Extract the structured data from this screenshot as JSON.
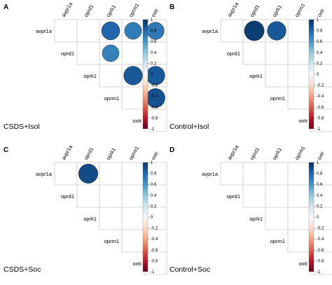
{
  "chart_data": [
    {
      "type": "heatmap",
      "panel": "A",
      "condition": "CSDS+Isol",
      "variables": [
        "avpr1a",
        "oprd1",
        "oprk1",
        "oprm1",
        "oxtr"
      ],
      "colorbar_ticks": [
        "1",
        "0.8",
        "0.6",
        "0.4",
        "0.2",
        "0",
        "-0.2",
        "-0.4",
        "-0.6",
        "-0.8",
        "-1"
      ],
      "cells": [
        {
          "row": "avpr1a",
          "col": "oprk1",
          "value": 0.8
        },
        {
          "row": "avpr1a",
          "col": "oprm1",
          "value": 0.7
        },
        {
          "row": "avpr1a",
          "col": "oxtr",
          "value": 0.72
        },
        {
          "row": "oprd1",
          "col": "oprk1",
          "value": 0.68
        },
        {
          "row": "oprk1",
          "col": "oprm1",
          "value": 0.85
        },
        {
          "row": "oprk1",
          "col": "oxtr",
          "value": 0.85
        },
        {
          "row": "oprm1",
          "col": "oxtr",
          "value": 0.88
        }
      ]
    },
    {
      "type": "heatmap",
      "panel": "B",
      "condition": "Control+Isol",
      "variables": [
        "avpr1a",
        "oprd1",
        "oprk1",
        "oprm1",
        "oxtr"
      ],
      "colorbar_ticks": [
        "1",
        "0.8",
        "0.6",
        "0.4",
        "0.2",
        "0",
        "-0.2",
        "-0.4",
        "-0.6",
        "-0.8",
        "-1"
      ],
      "cells": [
        {
          "row": "avpr1a",
          "col": "oprd1",
          "value": 0.95
        },
        {
          "row": "avpr1a",
          "col": "oprk1",
          "value": 0.85
        }
      ]
    },
    {
      "type": "heatmap",
      "panel": "C",
      "condition": "CSDS+Soc",
      "variables": [
        "avpr1a",
        "oprd1",
        "oprk1",
        "oprm1",
        "oxtr"
      ],
      "colorbar_ticks": [
        "1",
        "0.8",
        "0.6",
        "0.4",
        "0.2",
        "0",
        "-0.2",
        "-0.4",
        "-0.6",
        "-0.8",
        "-1"
      ],
      "cells": [
        {
          "row": "avpr1a",
          "col": "oprd1",
          "value": 0.9
        }
      ]
    },
    {
      "type": "heatmap",
      "panel": "D",
      "condition": "Control+Soc",
      "variables": [
        "avpr1a",
        "oprd1",
        "oprk1",
        "oprm1",
        "oxtr"
      ],
      "colorbar_ticks": [
        "1",
        "0.8",
        "0.6",
        "0.4",
        "0.2",
        "0",
        "-0.2",
        "-0.4",
        "-0.6",
        "-0.8",
        "-1"
      ],
      "cells": []
    }
  ]
}
